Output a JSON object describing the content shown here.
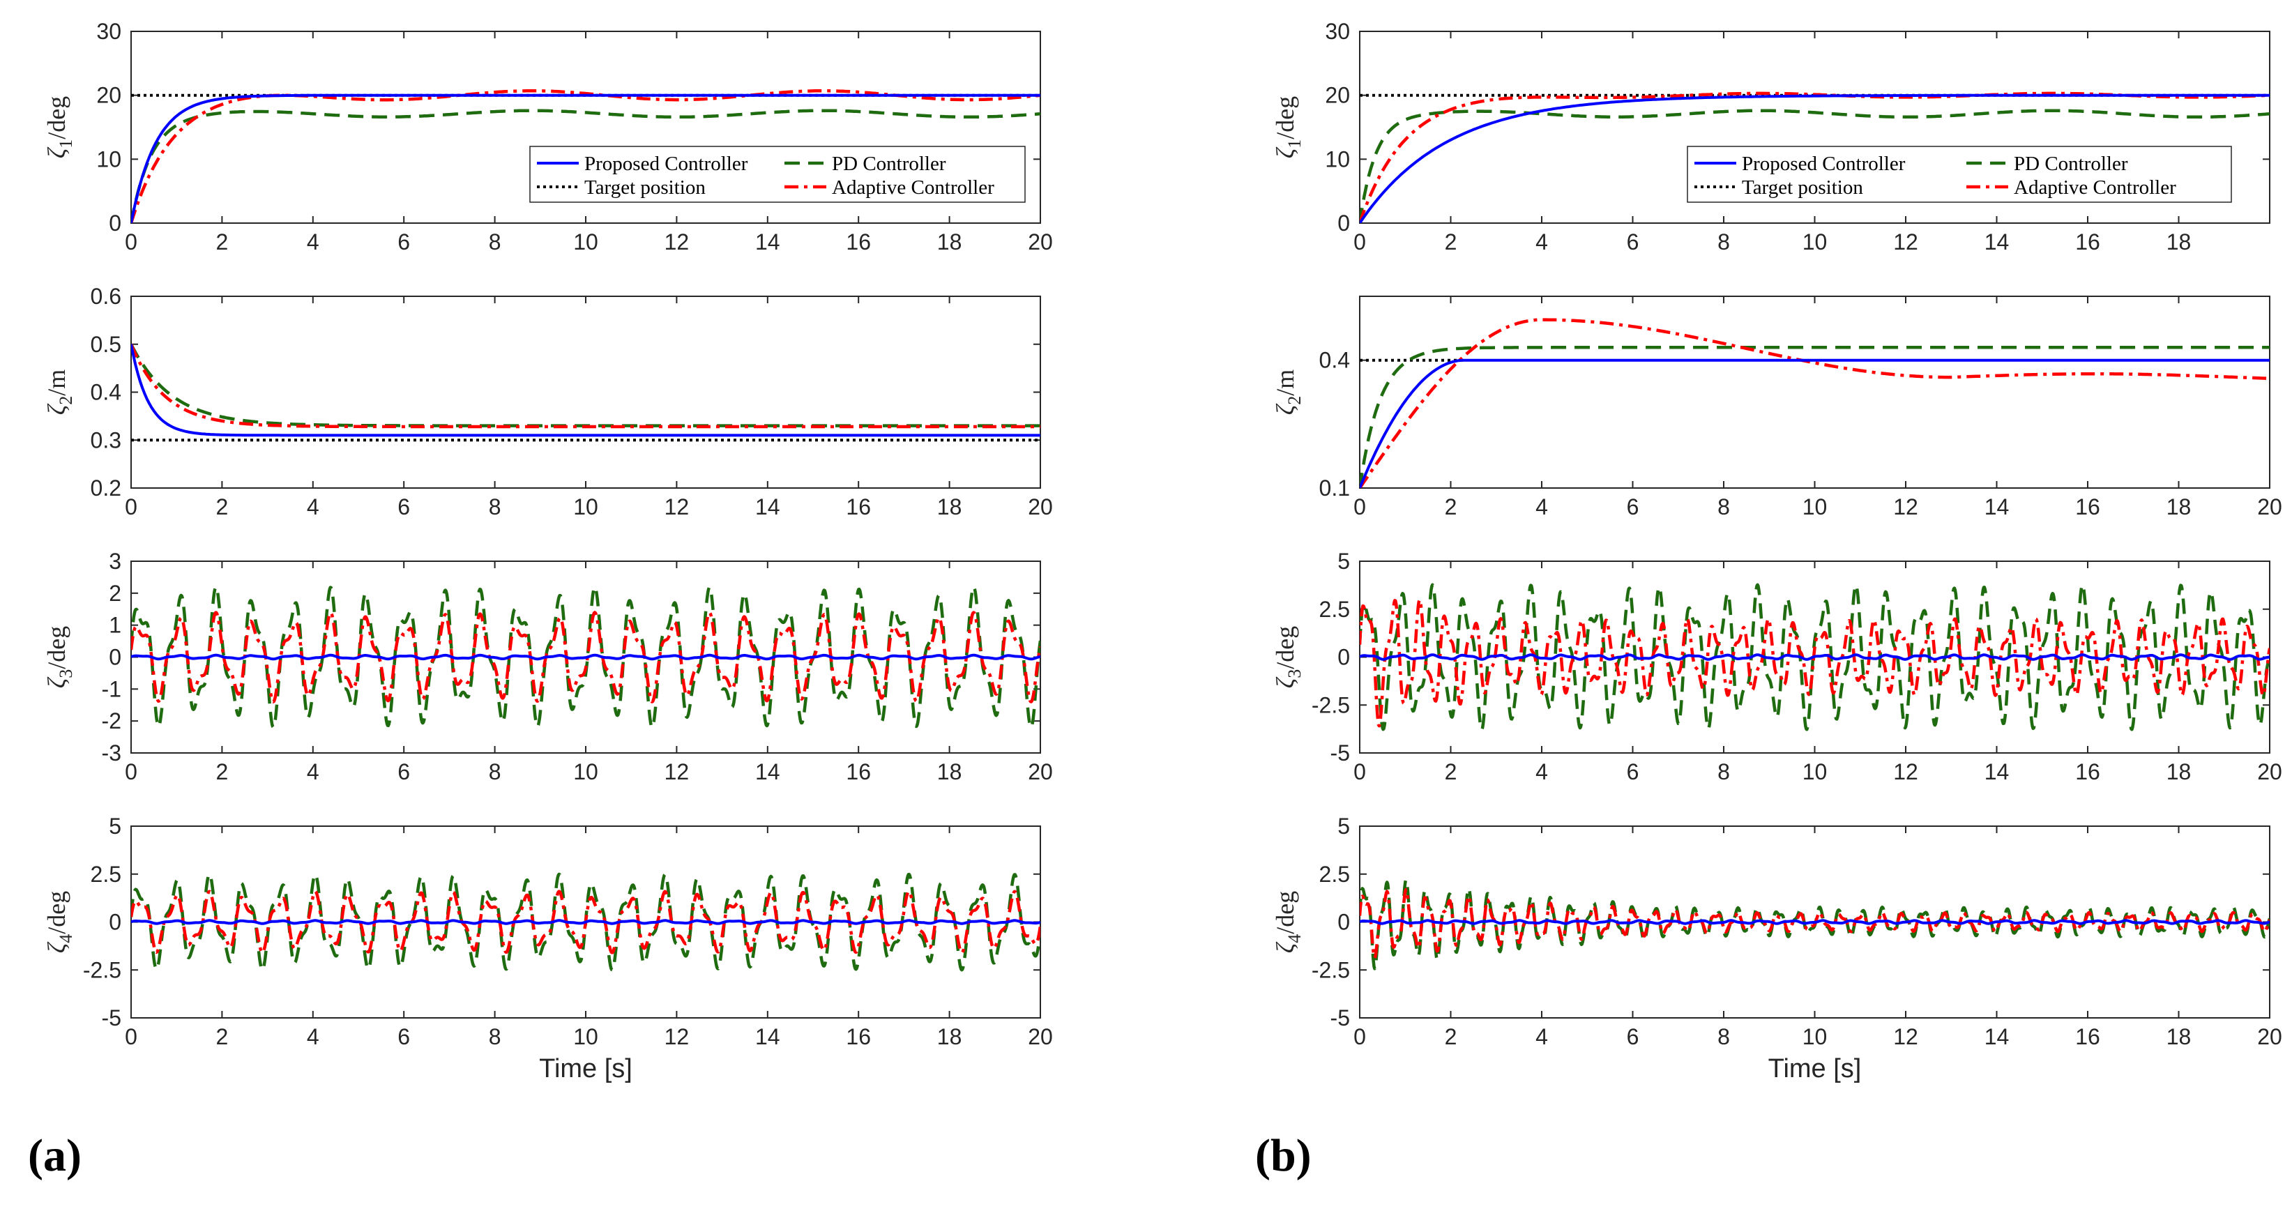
{
  "panel_labels": {
    "a": "(a)",
    "b": "(b)"
  },
  "legend": {
    "proposed": "Proposed Controller",
    "pd": "PD Controller",
    "target": "Target position",
    "adaptive": "Adaptive Controller"
  },
  "colors": {
    "proposed": "#0000ff",
    "pd": "#1f6b10",
    "target": "#000000",
    "adaptive": "#ff0000",
    "axis": "#262626"
  },
  "chart_data": [
    {
      "type": "line",
      "panel": "a",
      "row": 1,
      "ylabel": "ζ1/deg",
      "ylabel_sym": "ζ",
      "ylabel_sub": "1",
      "ylabel_unit": "/deg",
      "xlim": [
        0,
        20
      ],
      "ylim": [
        0,
        30
      ],
      "xticks": [
        0,
        2,
        4,
        6,
        8,
        10,
        12,
        14,
        16,
        18,
        20
      ],
      "yticks": [
        0,
        10,
        20,
        30
      ],
      "has_legend": true,
      "series": [
        {
          "name": "Proposed Controller",
          "kind": "exp",
          "start": 0,
          "end": 20,
          "tau": 0.55
        },
        {
          "name": "PD Controller",
          "kind": "exp",
          "start": 0,
          "end": 17.1,
          "tau": 0.45,
          "osc": [
            0.5,
            1.0
          ]
        },
        {
          "name": "Target position",
          "kind": "const",
          "value": 20
        },
        {
          "name": "Adaptive Controller",
          "kind": "exp",
          "start": 0,
          "end": 20,
          "tau": 0.85,
          "osc": [
            0.7,
            1.0
          ]
        }
      ]
    },
    {
      "type": "line",
      "panel": "a",
      "row": 2,
      "ylabel": "ζ2/m",
      "ylabel_sym": "ζ",
      "ylabel_sub": "2",
      "ylabel_unit": "/m",
      "xlim": [
        0,
        20
      ],
      "ylim": [
        0.2,
        0.6
      ],
      "xticks": [
        0,
        2,
        4,
        6,
        8,
        10,
        12,
        14,
        16,
        18,
        20
      ],
      "yticks": [
        0.2,
        0.3,
        0.4,
        0.5,
        0.6
      ],
      "series": [
        {
          "name": "Proposed Controller",
          "kind": "exp",
          "start": 0.5,
          "end": 0.31,
          "tau": 0.38
        },
        {
          "name": "PD Controller",
          "kind": "exp",
          "start": 0.5,
          "end": 0.33,
          "tau": 0.9
        },
        {
          "name": "Target position",
          "kind": "const",
          "value": 0.3
        },
        {
          "name": "Adaptive Controller",
          "kind": "exp",
          "start": 0.5,
          "end": 0.328,
          "tau": 0.75
        }
      ]
    },
    {
      "type": "line",
      "panel": "a",
      "row": 3,
      "ylabel": "ζ3/deg",
      "ylabel_sym": "ζ",
      "ylabel_sub": "3",
      "ylabel_unit": "/deg",
      "xlim": [
        0,
        20
      ],
      "ylim": [
        -3,
        3
      ],
      "xticks": [
        0,
        2,
        4,
        6,
        8,
        10,
        12,
        14,
        16,
        18,
        20
      ],
      "yticks": [
        -3,
        -2,
        -1,
        0,
        1,
        2,
        3
      ],
      "series": [
        {
          "name": "Proposed Controller",
          "kind": "osc",
          "amp": 0.06,
          "freq": 1.2,
          "decay": 0
        },
        {
          "name": "PD Controller",
          "kind": "osc",
          "amp": 2.2,
          "freq": 1.2,
          "decay": 0
        },
        {
          "name": "Adaptive Controller",
          "kind": "osc",
          "amp": 1.4,
          "freq": 1.2,
          "decay": 0
        }
      ]
    },
    {
      "type": "line",
      "panel": "a",
      "row": 4,
      "ylabel": "ζ4/deg",
      "ylabel_sym": "ζ",
      "ylabel_sub": "4",
      "ylabel_unit": "/deg",
      "xlim": [
        0,
        20
      ],
      "ylim": [
        -5,
        5
      ],
      "xticks": [
        0,
        2,
        4,
        6,
        8,
        10,
        12,
        14,
        16,
        18,
        20
      ],
      "yticks": [
        -5,
        -2.5,
        0,
        2.5,
        5
      ],
      "xlabel": "Time [s]",
      "series": [
        {
          "name": "Proposed Controller",
          "kind": "osc",
          "amp": 0.08,
          "freq": 1.3,
          "decay": 0
        },
        {
          "name": "PD Controller",
          "kind": "osc",
          "amp": 2.5,
          "freq": 1.3,
          "decay": 0
        },
        {
          "name": "Adaptive Controller",
          "kind": "osc",
          "amp": 1.6,
          "freq": 1.3,
          "decay": 0
        }
      ]
    },
    {
      "type": "line",
      "panel": "b",
      "row": 1,
      "ylabel": "ζ1/deg",
      "ylabel_sym": "ζ",
      "ylabel_sub": "1",
      "ylabel_unit": "/deg",
      "xlim": [
        0,
        20
      ],
      "ylim": [
        0,
        30
      ],
      "xticks": [
        0,
        2,
        4,
        6,
        8,
        10,
        12,
        14,
        16,
        18
      ],
      "yticks": [
        0,
        10,
        20,
        30
      ],
      "has_legend": true,
      "series": [
        {
          "name": "Proposed Controller",
          "kind": "exp",
          "start": 0,
          "end": 20,
          "tau": 1.9
        },
        {
          "name": "PD Controller",
          "kind": "exp",
          "start": 0,
          "end": 17.1,
          "tau": 0.35,
          "osc": [
            0.5,
            1.0
          ]
        },
        {
          "name": "Target position",
          "kind": "const",
          "value": 20
        },
        {
          "name": "Adaptive Controller",
          "kind": "exp",
          "start": 0,
          "end": 20,
          "tau": 0.95,
          "osc": [
            0.3,
            1.0
          ]
        }
      ]
    },
    {
      "type": "line",
      "panel": "b",
      "row": 2,
      "ylabel": "ζ2/m",
      "ylabel_sym": "ζ",
      "ylabel_sub": "2",
      "ylabel_unit": "/m",
      "xlim": [
        0,
        20
      ],
      "ylim": [
        0.1,
        0.55
      ],
      "xticks": [
        0,
        2,
        4,
        6,
        8,
        10,
        12,
        14,
        16,
        18,
        20
      ],
      "yticks": [
        0.1,
        0.4
      ],
      "series": [
        {
          "name": "Proposed Controller",
          "kind": "ramp",
          "start": 0.1,
          "end": 0.4,
          "t_reach": 2.3
        },
        {
          "name": "PD Controller",
          "kind": "exp",
          "start": 0.1,
          "end": 0.43,
          "tau": 0.45
        },
        {
          "name": "Target position",
          "kind": "const",
          "value": 0.4,
          "until": 2.3
        },
        {
          "name": "Adaptive Controller",
          "kind": "hump",
          "start": 0.1,
          "peak": 0.495,
          "t_peak": 4,
          "end": 0.36,
          "t_min": 13
        }
      ]
    },
    {
      "type": "line",
      "panel": "b",
      "row": 3,
      "ylabel": "ζ3/deg",
      "ylabel_sym": "ζ",
      "ylabel_sub": "3",
      "ylabel_unit": "/deg",
      "xlim": [
        0,
        20
      ],
      "ylim": [
        -5,
        5
      ],
      "xticks": [
        0,
        2,
        4,
        6,
        8,
        10,
        12,
        14,
        16,
        18,
        20
      ],
      "yticks": [
        -5,
        -2.5,
        0,
        2.5,
        5
      ],
      "series": [
        {
          "name": "Proposed Controller",
          "kind": "osc",
          "amp": 0.12,
          "freq": 1.4,
          "decay": 0
        },
        {
          "name": "PD Controller",
          "kind": "osc",
          "amp": 4.2,
          "freq": 1.4,
          "decay": 0.18,
          "floor": 0.9
        },
        {
          "name": "Adaptive Controller",
          "kind": "osc",
          "amp": 4.0,
          "freq": 1.7,
          "decay": 0.22,
          "floor": 0.5
        }
      ]
    },
    {
      "type": "line",
      "panel": "b",
      "row": 4,
      "ylabel": "ζ4/deg",
      "ylabel_sym": "ζ",
      "ylabel_sub": "4",
      "ylabel_unit": "/deg",
      "xlim": [
        0,
        20
      ],
      "ylim": [
        -5,
        5
      ],
      "xticks": [
        0,
        2,
        4,
        6,
        8,
        10,
        12,
        14,
        16,
        18,
        20
      ],
      "yticks": [
        -5,
        -2.5,
        0,
        2.5,
        5
      ],
      "xlabel": "Time [s]",
      "series": [
        {
          "name": "Proposed Controller",
          "kind": "osc",
          "amp": 0.08,
          "freq": 1.5,
          "decay": 0
        },
        {
          "name": "PD Controller",
          "kind": "osc",
          "amp": 2.6,
          "freq": 2.2,
          "decay": 0.16,
          "floor": 0.3
        },
        {
          "name": "Adaptive Controller",
          "kind": "osc",
          "amp": 2.0,
          "freq": 2.2,
          "decay": 0.16,
          "floor": 0.25
        }
      ]
    }
  ]
}
